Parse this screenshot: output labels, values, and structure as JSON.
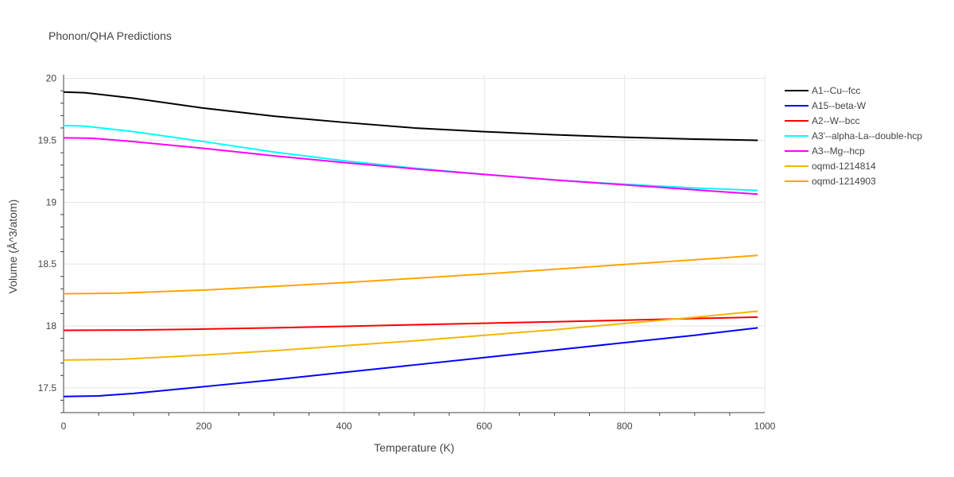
{
  "chart_data": {
    "type": "line",
    "title": "Phonon/QHA Predictions",
    "xlabel": "Temperature (K)",
    "ylabel": "Volume (Å^3/atom)",
    "xlim": [
      0,
      1000
    ],
    "ylim": [
      17.3,
      20.03
    ],
    "x_ticks": [
      0,
      200,
      400,
      600,
      800,
      1000
    ],
    "y_ticks": [
      17.5,
      18,
      18.5,
      19,
      19.5,
      20
    ],
    "x_tick_labels": [
      "0",
      "200",
      "400",
      "600",
      "800",
      "1000"
    ],
    "y_tick_labels": [
      "17.5",
      "18",
      "18.5",
      "19",
      "19.5",
      "20"
    ],
    "grid": true,
    "legend_position": "right",
    "series": [
      {
        "name": "A1--Cu--fcc",
        "color": "#000000",
        "x": [
          0,
          30,
          100,
          200,
          300,
          400,
          500,
          600,
          700,
          800,
          900,
          990
        ],
        "y": [
          19.89,
          19.885,
          19.84,
          19.76,
          19.695,
          19.645,
          19.6,
          19.57,
          19.545,
          19.525,
          19.51,
          19.5
        ]
      },
      {
        "name": "A15--beta-W",
        "color": "#0000ff",
        "x": [
          0,
          50,
          100,
          200,
          300,
          400,
          500,
          600,
          700,
          800,
          900,
          990
        ],
        "y": [
          17.43,
          17.435,
          17.455,
          17.51,
          17.565,
          17.625,
          17.685,
          17.745,
          17.805,
          17.865,
          17.925,
          17.985
        ]
      },
      {
        "name": "A2--W--bcc",
        "color": "#ff0000",
        "x": [
          0,
          100,
          200,
          300,
          400,
          500,
          600,
          700,
          800,
          900,
          990
        ],
        "y": [
          17.965,
          17.967,
          17.975,
          17.985,
          17.997,
          18.01,
          18.022,
          18.034,
          18.047,
          18.06,
          18.072
        ]
      },
      {
        "name": "A3'--alpha-La--double-hcp",
        "color": "#00ffff",
        "x": [
          0,
          30,
          100,
          200,
          300,
          400,
          500,
          600,
          700,
          800,
          900,
          990
        ],
        "y": [
          19.62,
          19.615,
          19.57,
          19.49,
          19.405,
          19.335,
          19.275,
          19.225,
          19.18,
          19.145,
          19.115,
          19.095
        ]
      },
      {
        "name": "A3--Mg--hcp",
        "color": "#ff00ff",
        "x": [
          0,
          40,
          100,
          200,
          300,
          400,
          500,
          600,
          700,
          800,
          900,
          990
        ],
        "y": [
          19.52,
          19.517,
          19.49,
          19.435,
          19.375,
          19.32,
          19.27,
          19.225,
          19.18,
          19.14,
          19.1,
          19.065
        ]
      },
      {
        "name": "oqmd-1214814",
        "color": "#f2b705",
        "x": [
          0,
          80,
          200,
          300,
          400,
          500,
          600,
          700,
          800,
          900,
          990
        ],
        "y": [
          17.725,
          17.73,
          17.765,
          17.8,
          17.84,
          17.88,
          17.925,
          17.97,
          18.02,
          18.07,
          18.12
        ]
      },
      {
        "name": "oqmd-1214903",
        "color": "#ffa500",
        "x": [
          0,
          80,
          200,
          300,
          400,
          500,
          600,
          700,
          800,
          900,
          990
        ],
        "y": [
          18.26,
          18.265,
          18.29,
          18.32,
          18.35,
          18.385,
          18.42,
          18.458,
          18.497,
          18.535,
          18.57
        ]
      }
    ]
  }
}
